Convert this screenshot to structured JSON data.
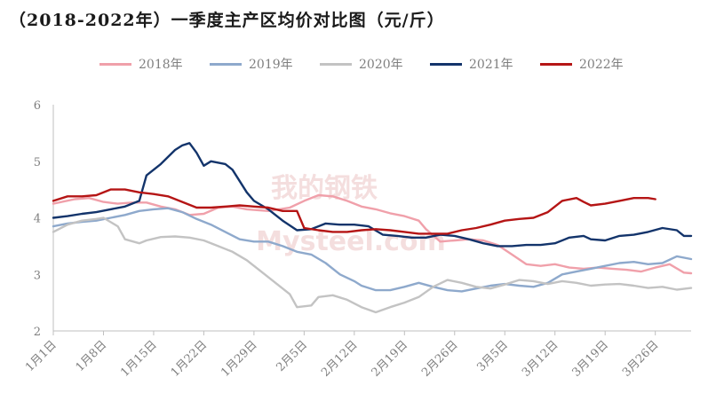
{
  "title": "（2018-2022年）一季度主产区均价对比图（元/斤）",
  "chart_data": {
    "type": "line",
    "title": "（2018-2022年）一季度主产区均价对比图（元/斤）",
    "xlabel": "",
    "ylabel": "",
    "ylim": [
      2,
      6
    ],
    "yticks": [
      2,
      3,
      4,
      5,
      6
    ],
    "xlim": [
      0,
      89
    ],
    "x_ticks": [
      {
        "x": 0,
        "label": "1月1日"
      },
      {
        "x": 7,
        "label": "1月8日"
      },
      {
        "x": 14,
        "label": "1月15日"
      },
      {
        "x": 21,
        "label": "1月22日"
      },
      {
        "x": 28,
        "label": "1月29日"
      },
      {
        "x": 35,
        "label": "2月5日"
      },
      {
        "x": 42,
        "label": "2月12日"
      },
      {
        "x": 49,
        "label": "2月19日"
      },
      {
        "x": 56,
        "label": "2月26日"
      },
      {
        "x": 63,
        "label": "3月5日"
      },
      {
        "x": 70,
        "label": "3月12日"
      },
      {
        "x": 77,
        "label": "3月19日"
      },
      {
        "x": 84,
        "label": "3月26日"
      }
    ],
    "legend_position": "top",
    "grid": false,
    "series": [
      {
        "name": "2018年",
        "color": "#f0a0aa",
        "points": [
          [
            0,
            4.25
          ],
          [
            3,
            4.33
          ],
          [
            5,
            4.35
          ],
          [
            7,
            4.28
          ],
          [
            9,
            4.25
          ],
          [
            11,
            4.27
          ],
          [
            13,
            4.27
          ],
          [
            15,
            4.2
          ],
          [
            17,
            4.15
          ],
          [
            19,
            4.05
          ],
          [
            21,
            4.07
          ],
          [
            23,
            4.18
          ],
          [
            25,
            4.2
          ],
          [
            27,
            4.15
          ],
          [
            30,
            4.12
          ],
          [
            33,
            4.18
          ],
          [
            35,
            4.3
          ],
          [
            37,
            4.4
          ],
          [
            39,
            4.38
          ],
          [
            41,
            4.3
          ],
          [
            43,
            4.2
          ],
          [
            45,
            4.15
          ],
          [
            47,
            4.08
          ],
          [
            49,
            4.03
          ],
          [
            51,
            3.95
          ],
          [
            52,
            3.8
          ],
          [
            54,
            3.58
          ],
          [
            56,
            3.6
          ],
          [
            58,
            3.62
          ],
          [
            60,
            3.6
          ],
          [
            62,
            3.52
          ],
          [
            64,
            3.35
          ],
          [
            66,
            3.18
          ],
          [
            68,
            3.15
          ],
          [
            70,
            3.18
          ],
          [
            72,
            3.12
          ],
          [
            74,
            3.1
          ],
          [
            76,
            3.12
          ],
          [
            78,
            3.1
          ],
          [
            80,
            3.08
          ],
          [
            82,
            3.05
          ],
          [
            84,
            3.12
          ],
          [
            86,
            3.18
          ],
          [
            88,
            3.03
          ],
          [
            89,
            3.02
          ]
        ]
      },
      {
        "name": "2019年",
        "color": "#8ea9cc",
        "points": [
          [
            0,
            3.85
          ],
          [
            2,
            3.9
          ],
          [
            4,
            3.93
          ],
          [
            6,
            3.95
          ],
          [
            8,
            4.0
          ],
          [
            10,
            4.05
          ],
          [
            12,
            4.12
          ],
          [
            14,
            4.15
          ],
          [
            16,
            4.17
          ],
          [
            18,
            4.1
          ],
          [
            20,
            3.98
          ],
          [
            22,
            3.88
          ],
          [
            24,
            3.75
          ],
          [
            26,
            3.62
          ],
          [
            28,
            3.58
          ],
          [
            30,
            3.58
          ],
          [
            32,
            3.5
          ],
          [
            34,
            3.4
          ],
          [
            36,
            3.35
          ],
          [
            38,
            3.2
          ],
          [
            40,
            3.0
          ],
          [
            42,
            2.88
          ],
          [
            43,
            2.8
          ],
          [
            45,
            2.72
          ],
          [
            47,
            2.72
          ],
          [
            49,
            2.78
          ],
          [
            51,
            2.85
          ],
          [
            53,
            2.78
          ],
          [
            55,
            2.72
          ],
          [
            57,
            2.7
          ],
          [
            59,
            2.75
          ],
          [
            61,
            2.8
          ],
          [
            63,
            2.83
          ],
          [
            65,
            2.8
          ],
          [
            67,
            2.78
          ],
          [
            69,
            2.85
          ],
          [
            71,
            3.0
          ],
          [
            73,
            3.05
          ],
          [
            75,
            3.1
          ],
          [
            77,
            3.15
          ],
          [
            79,
            3.2
          ],
          [
            81,
            3.22
          ],
          [
            83,
            3.18
          ],
          [
            85,
            3.2
          ],
          [
            87,
            3.32
          ],
          [
            89,
            3.27
          ]
        ]
      },
      {
        "name": "2020年",
        "color": "#c3c3c3",
        "points": [
          [
            0,
            3.75
          ],
          [
            2,
            3.88
          ],
          [
            4,
            3.95
          ],
          [
            6,
            3.98
          ],
          [
            7,
            4.0
          ],
          [
            9,
            3.85
          ],
          [
            10,
            3.62
          ],
          [
            12,
            3.55
          ],
          [
            13,
            3.6
          ],
          [
            15,
            3.66
          ],
          [
            17,
            3.67
          ],
          [
            19,
            3.65
          ],
          [
            21,
            3.6
          ],
          [
            23,
            3.5
          ],
          [
            25,
            3.4
          ],
          [
            27,
            3.25
          ],
          [
            29,
            3.05
          ],
          [
            31,
            2.85
          ],
          [
            33,
            2.65
          ],
          [
            34,
            2.42
          ],
          [
            36,
            2.45
          ],
          [
            37,
            2.6
          ],
          [
            39,
            2.63
          ],
          [
            41,
            2.55
          ],
          [
            43,
            2.42
          ],
          [
            45,
            2.33
          ],
          [
            47,
            2.42
          ],
          [
            49,
            2.5
          ],
          [
            51,
            2.6
          ],
          [
            53,
            2.78
          ],
          [
            55,
            2.9
          ],
          [
            57,
            2.85
          ],
          [
            59,
            2.78
          ],
          [
            61,
            2.75
          ],
          [
            63,
            2.82
          ],
          [
            65,
            2.9
          ],
          [
            67,
            2.88
          ],
          [
            69,
            2.83
          ],
          [
            71,
            2.88
          ],
          [
            73,
            2.85
          ],
          [
            75,
            2.8
          ],
          [
            77,
            2.82
          ],
          [
            79,
            2.83
          ],
          [
            81,
            2.8
          ],
          [
            83,
            2.76
          ],
          [
            85,
            2.78
          ],
          [
            87,
            2.73
          ],
          [
            89,
            2.76
          ]
        ]
      },
      {
        "name": "2021年",
        "color": "#13346b",
        "points": [
          [
            0,
            4.0
          ],
          [
            2,
            4.03
          ],
          [
            4,
            4.07
          ],
          [
            6,
            4.1
          ],
          [
            8,
            4.15
          ],
          [
            10,
            4.2
          ],
          [
            12,
            4.3
          ],
          [
            13,
            4.75
          ],
          [
            15,
            4.95
          ],
          [
            17,
            5.2
          ],
          [
            18,
            5.28
          ],
          [
            19,
            5.32
          ],
          [
            20,
            5.15
          ],
          [
            21,
            4.92
          ],
          [
            22,
            5.0
          ],
          [
            24,
            4.95
          ],
          [
            25,
            4.85
          ],
          [
            27,
            4.45
          ],
          [
            28,
            4.3
          ],
          [
            30,
            4.15
          ],
          [
            32,
            3.95
          ],
          [
            34,
            3.78
          ],
          [
            36,
            3.8
          ],
          [
            38,
            3.9
          ],
          [
            40,
            3.88
          ],
          [
            42,
            3.88
          ],
          [
            44,
            3.85
          ],
          [
            46,
            3.7
          ],
          [
            48,
            3.68
          ],
          [
            50,
            3.65
          ],
          [
            52,
            3.65
          ],
          [
            54,
            3.7
          ],
          [
            56,
            3.68
          ],
          [
            58,
            3.62
          ],
          [
            60,
            3.55
          ],
          [
            62,
            3.5
          ],
          [
            64,
            3.5
          ],
          [
            66,
            3.52
          ],
          [
            68,
            3.52
          ],
          [
            70,
            3.55
          ],
          [
            72,
            3.65
          ],
          [
            74,
            3.68
          ],
          [
            75,
            3.62
          ],
          [
            77,
            3.6
          ],
          [
            79,
            3.68
          ],
          [
            81,
            3.7
          ],
          [
            83,
            3.75
          ],
          [
            85,
            3.82
          ],
          [
            87,
            3.78
          ],
          [
            88,
            3.68
          ],
          [
            89,
            3.68
          ]
        ]
      },
      {
        "name": "2022年",
        "color": "#b51515",
        "points": [
          [
            0,
            4.3
          ],
          [
            2,
            4.38
          ],
          [
            4,
            4.38
          ],
          [
            6,
            4.4
          ],
          [
            8,
            4.5
          ],
          [
            10,
            4.5
          ],
          [
            12,
            4.45
          ],
          [
            14,
            4.42
          ],
          [
            16,
            4.38
          ],
          [
            18,
            4.28
          ],
          [
            20,
            4.18
          ],
          [
            22,
            4.18
          ],
          [
            24,
            4.2
          ],
          [
            26,
            4.22
          ],
          [
            28,
            4.2
          ],
          [
            30,
            4.18
          ],
          [
            32,
            4.12
          ],
          [
            34,
            4.12
          ],
          [
            35,
            3.82
          ],
          [
            37,
            3.78
          ],
          [
            39,
            3.75
          ],
          [
            41,
            3.75
          ],
          [
            43,
            3.78
          ],
          [
            45,
            3.8
          ],
          [
            47,
            3.78
          ],
          [
            49,
            3.75
          ],
          [
            51,
            3.72
          ],
          [
            53,
            3.72
          ],
          [
            55,
            3.72
          ],
          [
            57,
            3.78
          ],
          [
            59,
            3.82
          ],
          [
            61,
            3.88
          ],
          [
            63,
            3.95
          ],
          [
            65,
            3.98
          ],
          [
            67,
            4.0
          ],
          [
            69,
            4.1
          ],
          [
            71,
            4.3
          ],
          [
            73,
            4.35
          ],
          [
            74,
            4.28
          ],
          [
            75,
            4.22
          ],
          [
            77,
            4.25
          ],
          [
            79,
            4.3
          ],
          [
            81,
            4.35
          ],
          [
            83,
            4.35
          ],
          [
            84,
            4.33
          ]
        ]
      }
    ]
  },
  "watermark": {
    "main": "我的钢铁",
    "sub": "Mysteel.com"
  }
}
